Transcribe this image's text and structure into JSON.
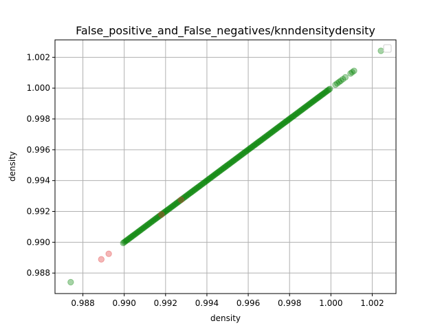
{
  "chart_data": {
    "type": "scatter",
    "title": "False_positive_and_False_negatives/knndensitydensity",
    "xlabel": "density",
    "ylabel": "density",
    "xlim": [
      0.98665,
      1.00315
    ],
    "ylim": [
      0.98667,
      1.00313
    ],
    "xticks": [
      "0.988",
      "0.990",
      "0.992",
      "0.994",
      "0.996",
      "0.998",
      "1.000",
      "1.002"
    ],
    "yticks": [
      "0.988",
      "0.990",
      "0.992",
      "0.994",
      "0.996",
      "0.998",
      "1.000",
      "1.002"
    ],
    "grid": true,
    "legend": "top-right (empty)",
    "point_alpha": 0.35,
    "series": [
      {
        "color": "#008000",
        "dense_segment": {
          "from": 0.98995,
          "to": 0.99995,
          "step": 5e-05
        },
        "points": [
          [
            0.98741,
            0.98741
          ],
          [
            1.00022,
            1.00022
          ],
          [
            1.00031,
            1.00031
          ],
          [
            1.0004,
            1.0004
          ],
          [
            1.00048,
            1.00048
          ],
          [
            1.00058,
            1.00058
          ],
          [
            1.0007,
            1.0007
          ],
          [
            1.00095,
            1.00095
          ],
          [
            1.00103,
            1.00103
          ],
          [
            1.00112,
            1.00112
          ],
          [
            1.00242,
            1.00242
          ]
        ]
      },
      {
        "color": "#e03030",
        "points": [
          [
            0.98889,
            0.98889
          ],
          [
            0.98925,
            0.98925
          ],
          [
            0.9918,
            0.9918
          ],
          [
            0.99275,
            0.99275
          ]
        ]
      }
    ]
  }
}
